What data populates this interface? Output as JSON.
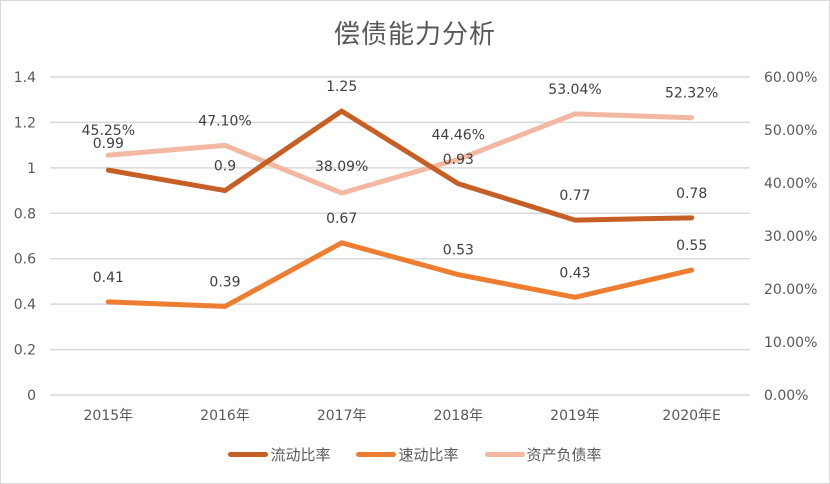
{
  "chart_data": {
    "type": "line",
    "title": "偿债能力分析",
    "categories": [
      "2015年",
      "2016年",
      "2017年",
      "2018年",
      "2019年",
      "2020年E"
    ],
    "series": [
      {
        "name": "流动比率",
        "axis": "left",
        "color": "#C65F25",
        "values": [
          0.99,
          0.9,
          1.25,
          0.93,
          0.77,
          0.78
        ],
        "labels": [
          "0.99",
          "0.9",
          "1.25",
          "0.93",
          "0.77",
          "0.78"
        ]
      },
      {
        "name": "速动比率",
        "axis": "left",
        "color": "#ED7D31",
        "values": [
          0.41,
          0.39,
          0.67,
          0.53,
          0.43,
          0.55
        ],
        "labels": [
          "0.41",
          "0.39",
          "0.67",
          "0.53",
          "0.43",
          "0.55"
        ]
      },
      {
        "name": "资产负债率",
        "axis": "right",
        "color": "#F2B8A2",
        "values": [
          45.25,
          47.1,
          38.09,
          44.46,
          53.04,
          52.32
        ],
        "labels": [
          "45.25%",
          "47.10%",
          "38.09%",
          "44.46%",
          "53.04%",
          "52.32%"
        ]
      }
    ],
    "left_axis": {
      "ylim": [
        0,
        1.4
      ],
      "ticks": [
        "0",
        "0.2",
        "0.4",
        "0.6",
        "0.8",
        "1",
        "1.2",
        "1.4"
      ]
    },
    "right_axis": {
      "ylim": [
        0,
        60
      ],
      "ticks": [
        "0.00%",
        "10.00%",
        "20.00%",
        "30.00%",
        "40.00%",
        "50.00%",
        "60.00%"
      ]
    },
    "xlabel": "",
    "ylabel": "",
    "grid": true,
    "legend_position": "bottom"
  }
}
